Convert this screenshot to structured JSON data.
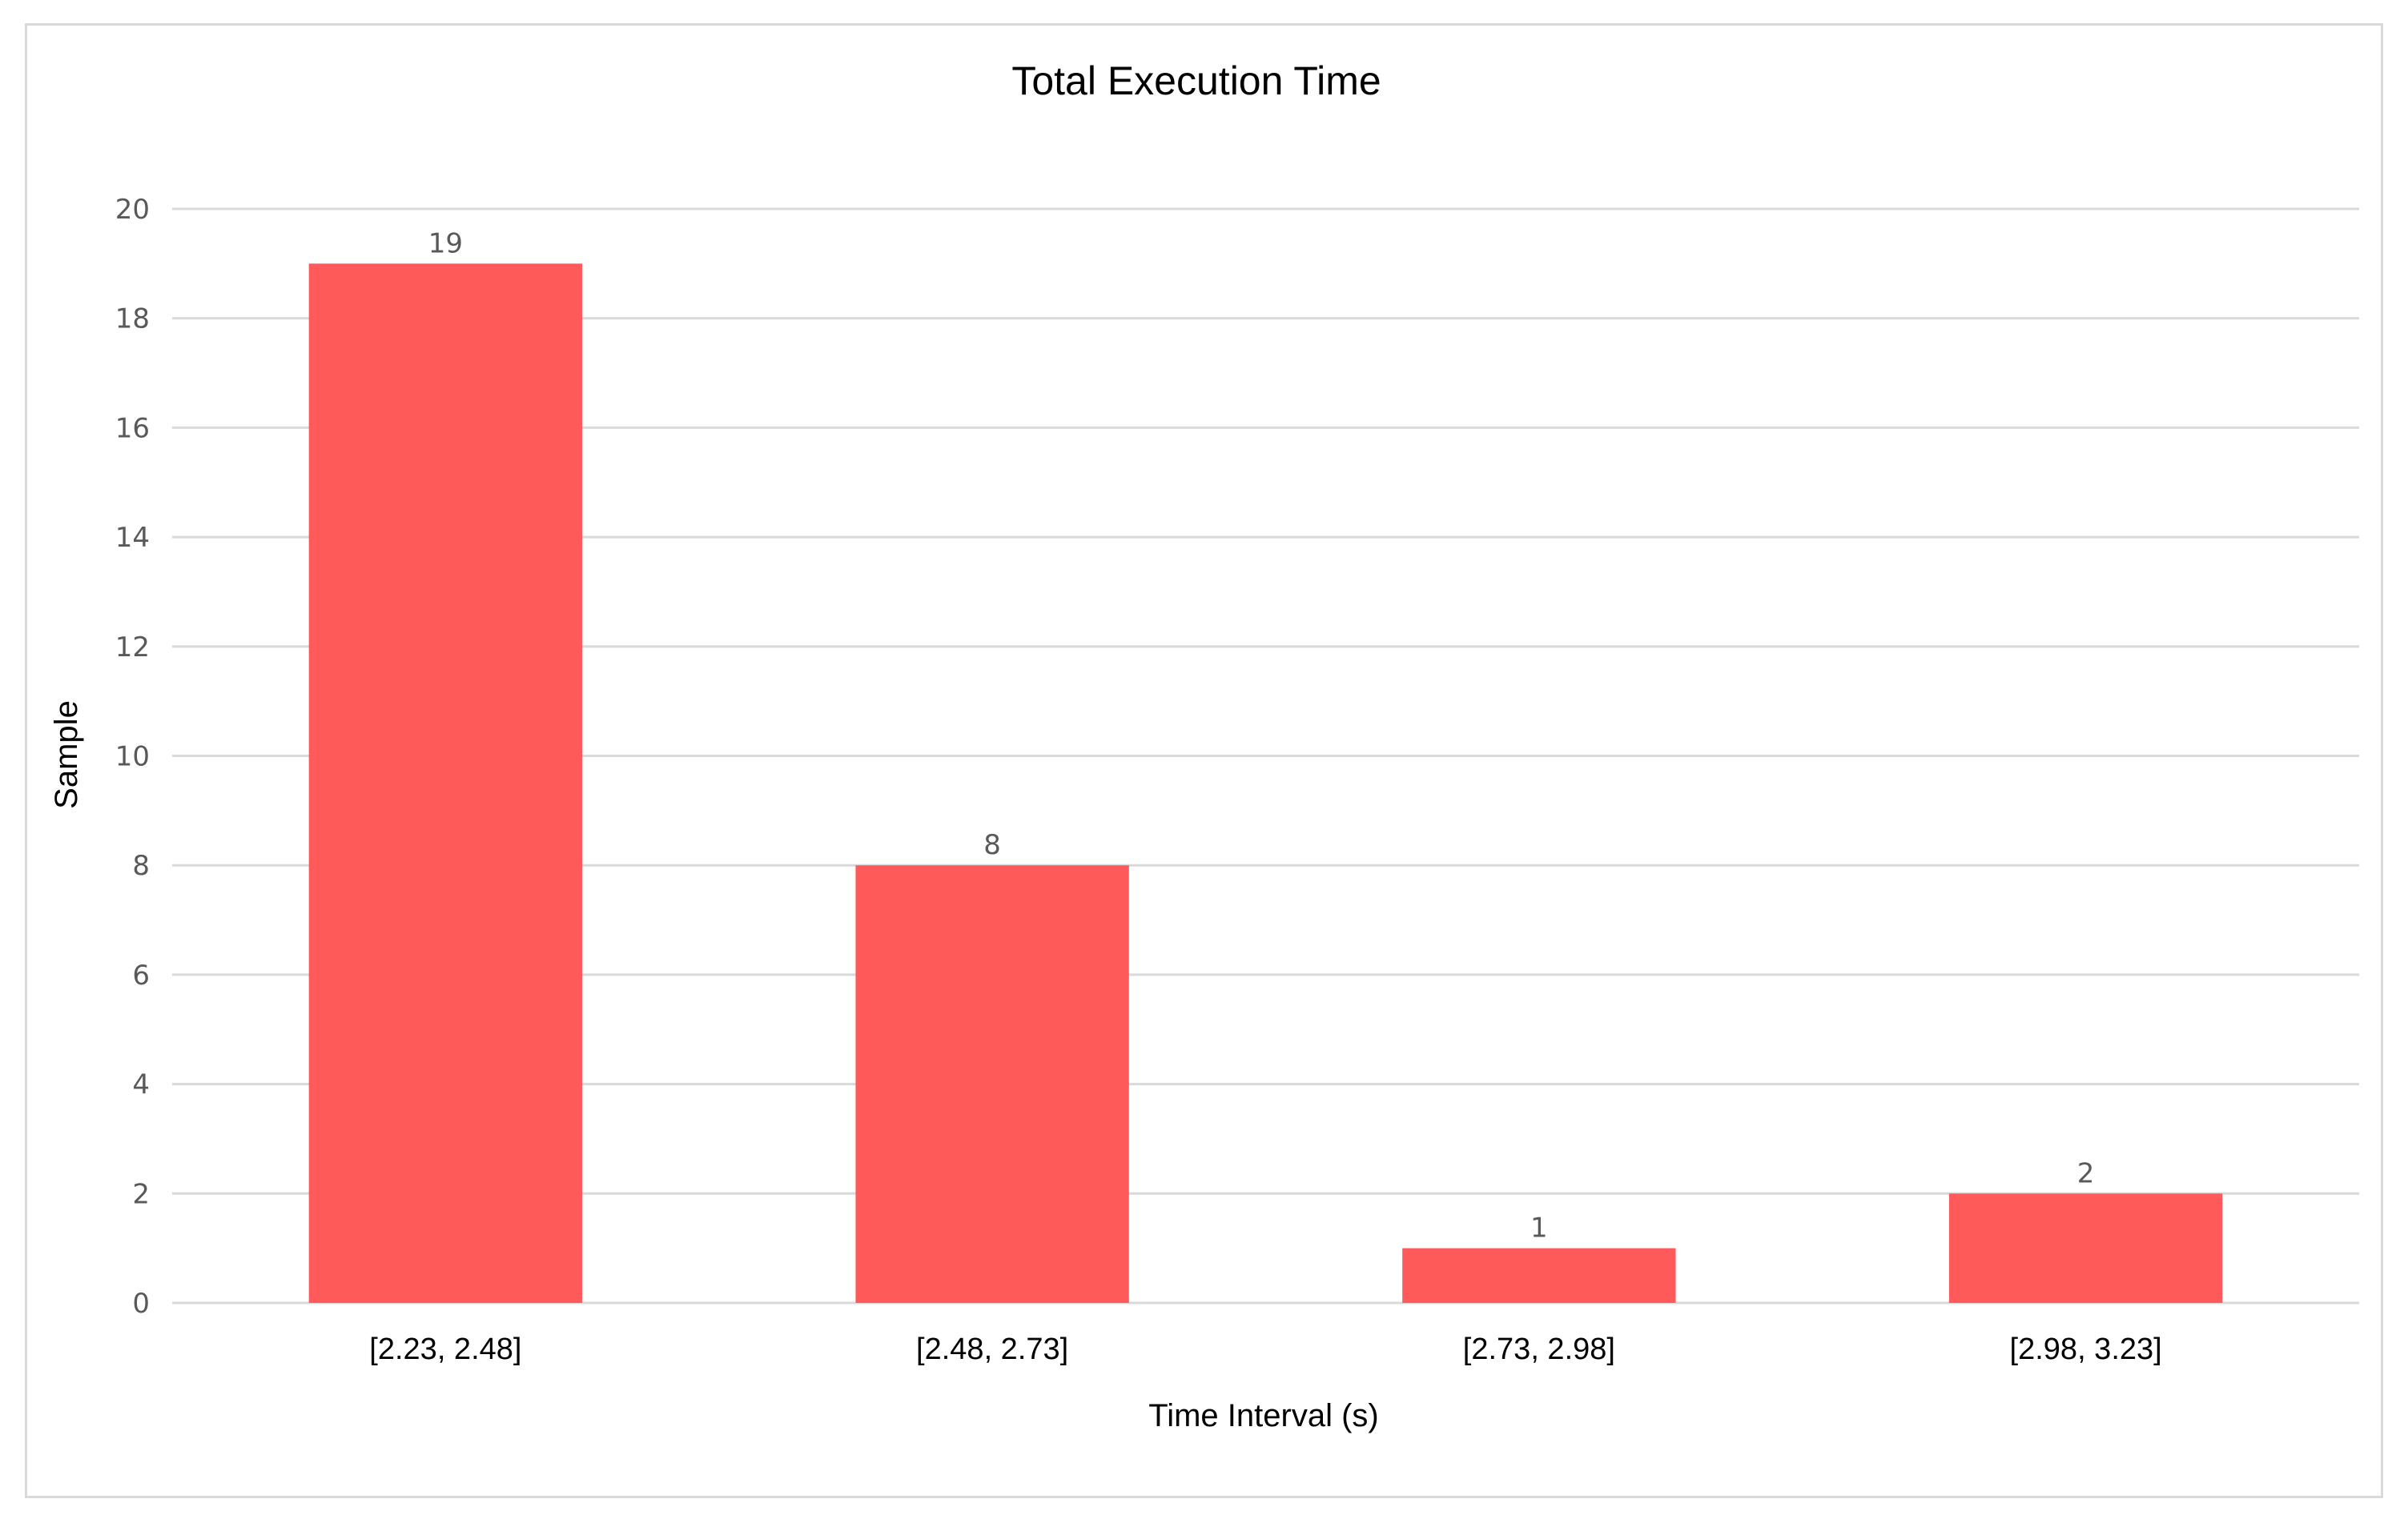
{
  "chart_data": {
    "type": "bar",
    "title": "Total Execution Time",
    "xlabel": "Time Interval (s)",
    "ylabel": "Sample",
    "categories": [
      "[2.23, 2.48]",
      "[2.48, 2.73]",
      "[2.73, 2.98]",
      "[2.98, 3.23]"
    ],
    "values": [
      19,
      8,
      1,
      2
    ],
    "data_labels": [
      "19",
      "8",
      "1",
      "2"
    ],
    "ylim": [
      0,
      20
    ],
    "yticks": [
      "0",
      "2",
      "4",
      "6",
      "8",
      "10",
      "12",
      "14",
      "16",
      "18",
      "20"
    ],
    "grid": "horizontal",
    "legend": "none",
    "bar_color": "#ff5a5a"
  }
}
